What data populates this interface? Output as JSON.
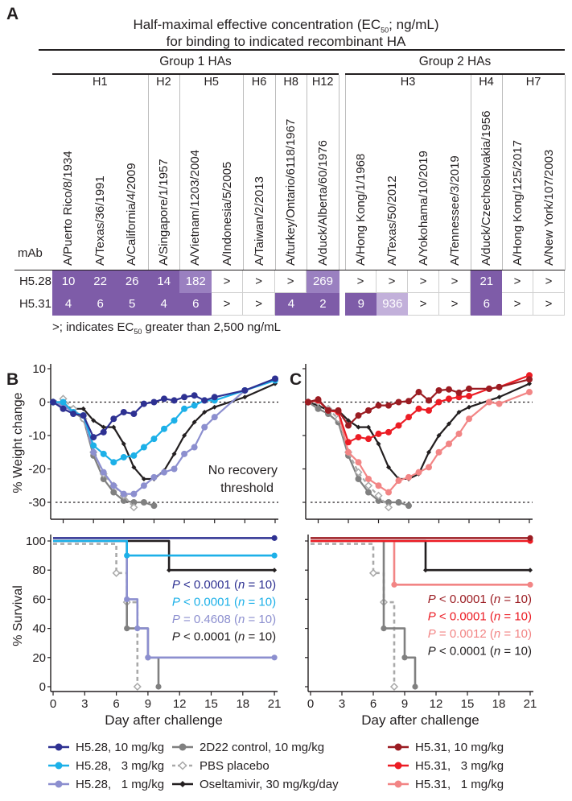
{
  "panel_a": {
    "letter": "A",
    "title_line1_pre": "Half-maximal effective concentration (EC",
    "title_line1_sub": "50",
    "title_line1_post": "; ng/mL)",
    "title_line2": "for binding to indicated recombinant HA",
    "groups": [
      {
        "label": "Group 1 HAs"
      },
      {
        "label": "Group 2 HAs"
      }
    ],
    "subtypes": [
      {
        "label": "H1",
        "span": 3,
        "group": 0
      },
      {
        "label": "H2",
        "span": 1,
        "group": 0
      },
      {
        "label": "H5",
        "span": 2,
        "group": 0
      },
      {
        "label": "H6",
        "span": 1,
        "group": 0
      },
      {
        "label": "H8",
        "span": 1,
        "group": 0
      },
      {
        "label": "H12",
        "span": 1,
        "group": 0
      },
      {
        "label": "H3",
        "span": 4,
        "group": 1
      },
      {
        "label": "H4",
        "span": 1,
        "group": 1
      },
      {
        "label": "H7",
        "span": 2,
        "group": 1
      }
    ],
    "strains": [
      "A/Puerto Rico/8/1934",
      "A/Texas/36/1991",
      "A/California/4/2009",
      "A/Singapore/1/1957",
      "A/Vietnam/1203/2004",
      "A/Indonesia/5/2005",
      "A/Taiwan/2/2013",
      "A/turkey/Ontario/6118/1967",
      "A/duck/Alberta/60/1976",
      "A/Hong Kong/1/1968",
      "A/Texas/50/2012",
      "A/Yokohama/10/2019",
      "A/Tennessee/3/2019",
      "A/duck/Czechoslovakia/1956",
      "A/Hong Kong/125/2017",
      "A/New York/107/2003"
    ],
    "mab_header": "mAb",
    "rows": [
      {
        "mab": "H5.28",
        "values": [
          "10",
          "22",
          "26",
          "14",
          "182",
          ">",
          ">",
          ">",
          "269",
          ">",
          ">",
          ">",
          ">",
          "21",
          ">",
          ">"
        ]
      },
      {
        "mab": "H5.31",
        "values": [
          "4",
          "6",
          "5",
          "4",
          "6",
          ">",
          ">",
          "4",
          "2",
          "9",
          "936",
          ">",
          ">",
          "6",
          ">",
          ">"
        ]
      }
    ],
    "footnote_pre": ">; indicates EC",
    "footnote_sub": "50",
    "footnote_post": " greater than 2,500 ng/mL",
    "colors": {
      "strong": "#7e5ca8",
      "medium": "#9a80c0",
      "weak": "#c2b0da"
    }
  },
  "panel_letters": {
    "b": "B",
    "c": "C"
  },
  "legend": [
    {
      "label": "H5.28, 10 mg/kg",
      "series": "h528_10"
    },
    {
      "label": "H5.28,   3 mg/kg",
      "series": "h528_3"
    },
    {
      "label": "H5.28,   1 mg/kg",
      "series": "h528_1"
    },
    {
      "label": "2D22 control, 10 mg/kg",
      "series": "d2d22"
    },
    {
      "label": "PBS placebo",
      "series": "pbs"
    },
    {
      "label": "Oseltamivir, 30 mg/kg/day",
      "series": "osel"
    },
    {
      "label": "H5.31, 10 mg/kg",
      "series": "h531_10"
    },
    {
      "label": "H5.31,   3 mg/kg",
      "series": "h531_3"
    },
    {
      "label": "H5.31,   1 mg/kg",
      "series": "h531_1"
    }
  ],
  "styles": {
    "h528_10": {
      "color": "#2e3192",
      "marker": "circle"
    },
    "h528_3": {
      "color": "#1cb0e8",
      "marker": "circle"
    },
    "h528_1": {
      "color": "#8c8fcf",
      "marker": "circle"
    },
    "d2d22": {
      "color": "#808080",
      "marker": "circle"
    },
    "pbs": {
      "color": "#a9a9a9",
      "marker": "open-diamond",
      "dashed": true
    },
    "osel": {
      "color": "#231f20",
      "marker": "diamond"
    },
    "h531_10": {
      "color": "#9b1c22",
      "marker": "circle"
    },
    "h531_3": {
      "color": "#ec1c24",
      "marker": "circle"
    },
    "h531_1": {
      "color": "#f28585",
      "marker": "circle"
    }
  },
  "chart_data": [
    {
      "id": "weight_b",
      "type": "line",
      "panel": "B",
      "ylabel": "% Weight change",
      "xlabel": "",
      "ylim": [
        -35,
        10
      ],
      "xlim": [
        -1,
        21
      ],
      "yticks": [
        "10",
        "0",
        "-10",
        "-20",
        "-30"
      ],
      "xticks": [
        0,
        3,
        6,
        9,
        12,
        15,
        18,
        21
      ],
      "reference_lines": [
        0,
        -30
      ],
      "annotation_line1": "No recovery",
      "annotation_line2": "threshold",
      "series": [
        {
          "key": "osel",
          "x": [
            -1,
            0,
            1,
            2,
            3,
            4,
            5,
            6,
            7,
            8,
            9,
            10,
            11,
            12,
            13,
            14,
            15,
            18,
            21
          ],
          "y": [
            0,
            -1,
            -2,
            -2,
            -5.5,
            -7.5,
            -7.5,
            -12.5,
            -19.5,
            -23,
            -23,
            -20.5,
            -15.5,
            -10,
            -6,
            -3,
            -1.5,
            1.5,
            5.5
          ]
        },
        {
          "key": "d2d22",
          "x": [
            -1,
            0,
            1,
            2,
            3,
            4,
            5,
            6,
            7,
            8,
            9
          ],
          "y": [
            0,
            0,
            -3,
            -5,
            -16,
            -23,
            -27,
            -29.5,
            -30,
            -30,
            -31
          ]
        },
        {
          "key": "pbs",
          "x": [
            -1,
            0,
            1,
            2,
            3,
            4,
            5,
            6,
            7
          ],
          "y": [
            0,
            1,
            -2,
            -5,
            -15,
            -21.5,
            -25,
            -28,
            -31.5
          ]
        },
        {
          "key": "h528_1",
          "x": [
            -1,
            0,
            1,
            2,
            3,
            4,
            5,
            6,
            7,
            8,
            9,
            10,
            11,
            12,
            13,
            14,
            15,
            18,
            21
          ],
          "y": [
            0,
            -1,
            -3,
            -4,
            -15,
            -21,
            -25,
            -27.5,
            -27.5,
            -25,
            -22.5,
            -21,
            -20,
            -15.5,
            -13.5,
            -7.5,
            -4.5,
            3.5,
            7
          ]
        },
        {
          "key": "h528_3",
          "x": [
            -1,
            0,
            1,
            2,
            3,
            4,
            5,
            6,
            7,
            8,
            9,
            10,
            11,
            12,
            13,
            14,
            15,
            18,
            21
          ],
          "y": [
            0,
            0,
            -3,
            -4,
            -13,
            -15.5,
            -18,
            -16.5,
            -16,
            -13.5,
            -11,
            -8,
            -5.5,
            -2,
            -1,
            0.5,
            0.5,
            3.5,
            6.5
          ]
        },
        {
          "key": "h528_10",
          "x": [
            -1,
            0,
            1,
            2,
            3,
            4,
            5,
            6,
            7,
            8,
            9,
            10,
            11,
            12,
            13,
            14,
            15,
            18,
            21
          ],
          "y": [
            0,
            -2,
            -3.5,
            -4,
            -10.5,
            -9,
            -5,
            -3,
            -3.5,
            -0.5,
            0,
            1,
            0.5,
            1.5,
            2,
            0.5,
            1.5,
            3.5,
            7
          ]
        }
      ]
    },
    {
      "id": "weight_c",
      "type": "line",
      "panel": "C",
      "ylabel": "",
      "xlabel": "",
      "ylim": [
        -35,
        10
      ],
      "xlim": [
        -1,
        21
      ],
      "xticks": [
        0,
        3,
        6,
        9,
        12,
        15,
        18,
        21
      ],
      "reference_lines": [
        0,
        -30
      ],
      "series": [
        {
          "key": "osel",
          "x": [
            -1,
            0,
            1,
            2,
            3,
            4,
            5,
            6,
            7,
            8,
            9,
            10,
            11,
            12,
            13,
            14,
            15,
            18,
            21
          ],
          "y": [
            0,
            -1,
            -2.5,
            -2.5,
            -5.5,
            -7.5,
            -7.5,
            -12.5,
            -19.5,
            -23,
            -23,
            -21.5,
            -15,
            -10,
            -6.5,
            -3,
            -1.5,
            1.5,
            5.5
          ]
        },
        {
          "key": "d2d22",
          "x": [
            -1,
            0,
            1,
            2,
            3,
            4,
            5,
            6,
            7,
            8,
            9
          ],
          "y": [
            0,
            -2,
            -3.5,
            -6,
            -16,
            -23,
            -27,
            -29.5,
            -30,
            -30,
            -31
          ]
        },
        {
          "key": "pbs",
          "x": [
            -1,
            0,
            1,
            2,
            3,
            4,
            5,
            6,
            7
          ],
          "y": [
            0,
            0,
            -2,
            -5,
            -15,
            -21,
            -25,
            -28,
            -31.5
          ]
        },
        {
          "key": "h531_1",
          "x": [
            -1,
            0,
            1,
            2,
            3,
            4,
            5,
            6,
            7,
            8,
            9,
            10,
            11,
            12,
            13,
            14,
            15,
            17,
            18,
            21
          ],
          "y": [
            0,
            0.5,
            -2.5,
            -3,
            -15,
            -18,
            -23,
            -25,
            -27,
            -23.5,
            -22.5,
            -21,
            -19.5,
            -15,
            -12.5,
            -9.5,
            -5,
            0,
            -0.5,
            3
          ]
        },
        {
          "key": "h531_3",
          "x": [
            -1,
            0,
            1,
            2,
            3,
            4,
            5,
            6,
            7,
            8,
            9,
            10,
            11,
            12,
            13,
            14,
            15,
            17,
            18,
            21
          ],
          "y": [
            0,
            0.5,
            -2.5,
            -3,
            -12,
            -10.5,
            -11,
            -9.5,
            -9,
            -7,
            -4.5,
            -2,
            -2.5,
            0,
            1,
            1.5,
            1.8,
            4,
            4.5,
            8
          ]
        },
        {
          "key": "h531_10",
          "x": [
            -1,
            0,
            1,
            2,
            3,
            4,
            5,
            6,
            7,
            8,
            9,
            10,
            11,
            12,
            13,
            14,
            15,
            17,
            18,
            21
          ],
          "y": [
            0,
            0.8,
            -2.5,
            -2.5,
            -7,
            -4,
            -2.5,
            -1,
            -1,
            0,
            0.3,
            3,
            0.5,
            3.5,
            3.8,
            2.8,
            4,
            4,
            4.5,
            6.8
          ]
        }
      ]
    },
    {
      "id": "survival_b",
      "type": "line",
      "panel": "B",
      "step": true,
      "ylabel": "% Survival",
      "xlabel": "Day after challenge",
      "ylim": [
        0,
        100
      ],
      "xlim": [
        0,
        21
      ],
      "yticks": [
        "100",
        "80",
        "60",
        "40",
        "20",
        "0"
      ],
      "xticks": [
        "0",
        "3",
        "6",
        "9",
        "12",
        "15",
        "18",
        "21"
      ],
      "series": [
        {
          "key": "pbs",
          "x": [
            0,
            6,
            7,
            8
          ],
          "y": [
            98,
            78,
            58,
            0
          ]
        },
        {
          "key": "d2d22",
          "x": [
            0,
            7,
            9,
            10
          ],
          "y": [
            100,
            40,
            20,
            0
          ]
        },
        {
          "key": "osel",
          "x": [
            0,
            11,
            21
          ],
          "y": [
            100,
            80,
            80
          ]
        },
        {
          "key": "h528_1",
          "x": [
            0,
            7,
            8,
            9,
            21
          ],
          "y": [
            100,
            60,
            40,
            20,
            20
          ]
        },
        {
          "key": "h528_3",
          "x": [
            0,
            7,
            21
          ],
          "y": [
            100,
            90,
            90
          ]
        },
        {
          "key": "h528_10",
          "x": [
            0,
            21
          ],
          "y": [
            102,
            102
          ]
        }
      ],
      "stats": [
        {
          "key": "h528_10",
          "p_symbol": "P",
          "p_text": " < 0.0001 (",
          "n_symbol": "n",
          "n_text": " = 10)"
        },
        {
          "key": "h528_3",
          "p_symbol": "P",
          "p_text": " < 0.0001 (",
          "n_symbol": "n",
          "n_text": " = 10)"
        },
        {
          "key": "h528_1",
          "p_symbol": "P",
          "p_text": " = 0.4608 (",
          "n_symbol": "n",
          "n_text": " = 10)"
        },
        {
          "key": "osel",
          "p_symbol": "P",
          "p_text": " < 0.0001 (",
          "n_symbol": "n",
          "n_text": " = 10)"
        }
      ]
    },
    {
      "id": "survival_c",
      "type": "line",
      "panel": "C",
      "step": true,
      "ylabel": "",
      "xlabel": "Day after challenge",
      "ylim": [
        0,
        100
      ],
      "xlim": [
        0,
        21
      ],
      "xticks": [
        "0",
        "3",
        "6",
        "9",
        "12",
        "15",
        "18",
        "21"
      ],
      "series": [
        {
          "key": "pbs",
          "x": [
            0,
            6,
            7,
            8
          ],
          "y": [
            98,
            78,
            58,
            0
          ]
        },
        {
          "key": "d2d22",
          "x": [
            0,
            7,
            9,
            10
          ],
          "y": [
            100,
            40,
            20,
            0
          ]
        },
        {
          "key": "osel",
          "x": [
            0,
            11,
            21
          ],
          "y": [
            100,
            80,
            80
          ]
        },
        {
          "key": "h531_1",
          "x": [
            0,
            8,
            21
          ],
          "y": [
            100,
            70,
            70
          ]
        },
        {
          "key": "h531_3",
          "x": [
            0,
            21
          ],
          "y": [
            100,
            100
          ]
        },
        {
          "key": "h531_10",
          "x": [
            0,
            21
          ],
          "y": [
            102,
            102
          ]
        }
      ],
      "stats": [
        {
          "key": "h531_10",
          "p_symbol": "P",
          "p_text": " < 0.0001 (",
          "n_symbol": "n",
          "n_text": " = 10)"
        },
        {
          "key": "h531_3",
          "p_symbol": "P",
          "p_text": " < 0.0001 (",
          "n_symbol": "n",
          "n_text": " = 10)"
        },
        {
          "key": "h531_1",
          "p_symbol": "P",
          "p_text": " = 0.0012 (",
          "n_symbol": "n",
          "n_text": " = 10)"
        },
        {
          "key": "osel",
          "p_symbol": "P",
          "p_text": " < 0.0001 (",
          "n_symbol": "n",
          "n_text": " = 10)"
        }
      ]
    }
  ]
}
